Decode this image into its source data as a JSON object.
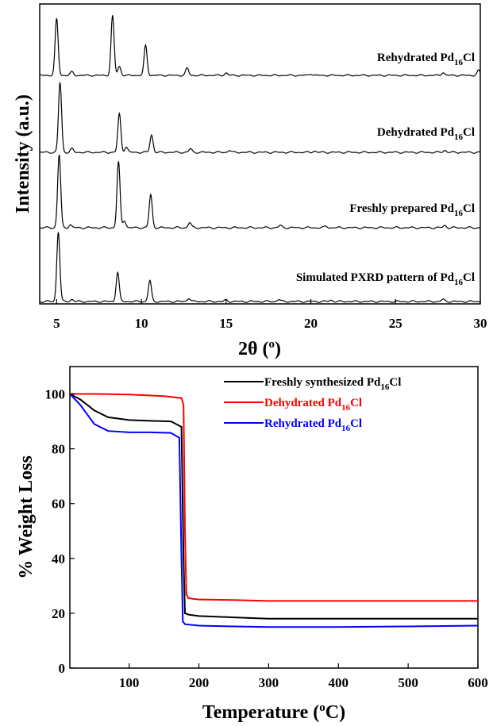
{
  "chart_data": [
    {
      "type": "line",
      "xlabel": "2θ (°)",
      "xlabel_prefix": "2θ (",
      "xlabel_sup": "o",
      "xlabel_suffix": ")",
      "ylabel": "Intensity (a.u.)",
      "xlim": [
        4,
        30
      ],
      "xticks": [
        5,
        10,
        15,
        20,
        25,
        30
      ],
      "series": [
        {
          "name": "Simulated PXRD pattern of Pd16Cl",
          "label_prefix": "Simulated PXRD pattern of Pd",
          "label_sub": "16",
          "label_suffix": "Cl",
          "peaks": [
            [
              5.1,
              1.0
            ],
            [
              5.9,
              0.03
            ],
            [
              8.6,
              0.42
            ],
            [
              10.5,
              0.3
            ],
            [
              12.8,
              0.05
            ],
            [
              15.0,
              0.02
            ],
            [
              18.1,
              0.03
            ],
            [
              21.2,
              0.02
            ],
            [
              27.8,
              0.03
            ]
          ]
        },
        {
          "name": "Freshly prepared Pd16Cl",
          "label_prefix": "Freshly prepared Pd",
          "label_sub": "16",
          "label_suffix": "Cl",
          "peaks": [
            [
              5.15,
              1.0
            ],
            [
              5.8,
              0.04
            ],
            [
              8.65,
              0.9
            ],
            [
              9.0,
              0.1
            ],
            [
              10.55,
              0.45
            ],
            [
              12.85,
              0.07
            ],
            [
              18.2,
              0.03
            ],
            [
              20.9,
              0.02
            ],
            [
              27.9,
              0.03
            ]
          ]
        },
        {
          "name": "Dehydrated Pd16Cl",
          "label_prefix": "Dehydrated Pd",
          "label_sub": "16",
          "label_suffix": "Cl",
          "peaks": [
            [
              5.2,
              1.0
            ],
            [
              5.9,
              0.05
            ],
            [
              8.7,
              0.55
            ],
            [
              9.1,
              0.08
            ],
            [
              10.6,
              0.25
            ],
            [
              12.9,
              0.05
            ],
            [
              15.2,
              0.03
            ],
            [
              20.2,
              0.02
            ],
            [
              27.9,
              0.03
            ]
          ]
        },
        {
          "name": "Rehydrated Pd16Cl",
          "label_prefix": "Rehydrated Pd",
          "label_sub": "16",
          "label_suffix": "Cl",
          "peaks": [
            [
              5.0,
              0.95
            ],
            [
              5.9,
              0.06
            ],
            [
              8.3,
              1.0
            ],
            [
              8.7,
              0.15
            ],
            [
              10.25,
              0.5
            ],
            [
              12.7,
              0.12
            ],
            [
              15.0,
              0.04
            ],
            [
              20.0,
              0.03
            ],
            [
              27.8,
              0.05
            ],
            [
              29.9,
              0.08
            ]
          ]
        }
      ]
    },
    {
      "type": "line",
      "xlabel": "Temperature (°C)",
      "xlabel_prefix": "Temperature (",
      "xlabel_sup": "o",
      "xlabel_suffix": "C)",
      "ylabel": "% Weight Loss",
      "xlim": [
        15,
        600
      ],
      "ylim": [
        0,
        110
      ],
      "xticks": [
        100,
        200,
        300,
        400,
        500,
        600
      ],
      "yticks": [
        0,
        20,
        40,
        60,
        80,
        100
      ],
      "legend": "top-right",
      "series": [
        {
          "name": "Freshly synthesized Pd16Cl",
          "label_prefix": "Freshly synthesized Pd",
          "label_sub": "16",
          "label_suffix": "Cl",
          "color": "#000000",
          "x": [
            15,
            30,
            50,
            70,
            100,
            130,
            160,
            175,
            178,
            180,
            185,
            200,
            250,
            300,
            400,
            500,
            600
          ],
          "y": [
            100,
            98,
            94,
            91.5,
            90.5,
            90.2,
            90,
            88,
            40,
            20,
            19.5,
            19,
            18.5,
            18,
            18,
            18,
            18
          ]
        },
        {
          "name": "Dehydrated Pd16Cl",
          "label_prefix": "Dehydrated Pd",
          "label_sub": "16",
          "label_suffix": "Cl",
          "color": "#ff0000",
          "x": [
            15,
            50,
            100,
            150,
            175,
            178,
            180,
            182,
            185,
            200,
            250,
            300,
            400,
            500,
            600
          ],
          "y": [
            100,
            100,
            99.8,
            99.2,
            98.5,
            96,
            50,
            27,
            25.5,
            25,
            24.8,
            24.5,
            24.5,
            24.5,
            24.5
          ]
        },
        {
          "name": "Rehydrated Pd16Cl",
          "label_prefix": "Rehydrated Pd",
          "label_sub": "16",
          "label_suffix": "Cl",
          "color": "#0000ff",
          "x": [
            15,
            30,
            50,
            70,
            100,
            130,
            160,
            172,
            175,
            177,
            180,
            200,
            250,
            300,
            400,
            500,
            600
          ],
          "y": [
            100,
            96,
            89,
            86.5,
            86,
            86,
            85.8,
            84,
            40,
            17,
            16,
            15.5,
            15.2,
            15,
            15,
            15.2,
            15.5
          ]
        }
      ]
    }
  ]
}
